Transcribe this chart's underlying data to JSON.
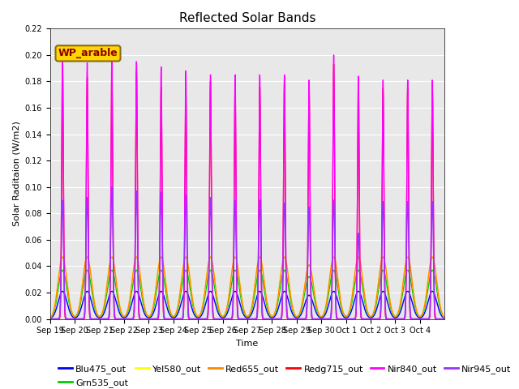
{
  "title": "Reflected Solar Bands",
  "ylabel": "Solar Raditaion (W/m2)",
  "xlabel": "Time",
  "annotation_text": "WP_arable",
  "annotation_color": "#8B0000",
  "annotation_bg": "#FFD700",
  "annotation_edge": "#8B6914",
  "ylim": [
    0.0,
    0.22
  ],
  "background_color": "#E8E8E8",
  "x_tick_labels": [
    "Sep 19",
    "Sep 20",
    "Sep 21",
    "Sep 22",
    "Sep 23",
    "Sep 24",
    "Sep 25",
    "Sep 26",
    "Sep 27",
    "Sep 28",
    "Sep 29",
    "Sep 30",
    "Oct 1",
    "Oct 2",
    "Oct 3",
    "Oct 4"
  ],
  "num_days": 16,
  "nir840_peaks": [
    0.197,
    0.194,
    0.195,
    0.195,
    0.191,
    0.188,
    0.185,
    0.185,
    0.185,
    0.185,
    0.181,
    0.2,
    0.184,
    0.181,
    0.181,
    0.181
  ],
  "redg715_peaks": [
    0.19,
    0.183,
    0.187,
    0.188,
    0.176,
    0.172,
    0.18,
    0.175,
    0.176,
    0.178,
    0.175,
    0.193,
    0.178,
    0.175,
    0.175,
    0.175
  ],
  "nir945_peaks": [
    0.09,
    0.092,
    0.1,
    0.097,
    0.096,
    0.094,
    0.092,
    0.09,
    0.09,
    0.088,
    0.085,
    0.09,
    0.065,
    0.089,
    0.089,
    0.089
  ],
  "blu_peaks": [
    0.021,
    0.021,
    0.021,
    0.021,
    0.021,
    0.021,
    0.021,
    0.021,
    0.021,
    0.021,
    0.018,
    0.021,
    0.021,
    0.021,
    0.021,
    0.021
  ],
  "grn_peaks": [
    0.037,
    0.037,
    0.037,
    0.037,
    0.037,
    0.037,
    0.037,
    0.037,
    0.037,
    0.037,
    0.032,
    0.037,
    0.037,
    0.037,
    0.037,
    0.037
  ],
  "yel_peaks": [
    0.047,
    0.047,
    0.047,
    0.047,
    0.047,
    0.047,
    0.047,
    0.047,
    0.047,
    0.047,
    0.041,
    0.047,
    0.047,
    0.047,
    0.047,
    0.047
  ],
  "red655_peaks": [
    0.047,
    0.047,
    0.047,
    0.047,
    0.047,
    0.047,
    0.047,
    0.047,
    0.047,
    0.047,
    0.041,
    0.047,
    0.047,
    0.047,
    0.047,
    0.047
  ],
  "series_colors": {
    "Blu475_out": "#0000FF",
    "Grn535_out": "#00CC00",
    "Yel580_out": "#FFFF00",
    "Red655_out": "#FF8800",
    "Redg715_out": "#FF0000",
    "Nir840_out": "#FF00FF",
    "Nir945_out": "#9933FF"
  },
  "yticks": [
    0.0,
    0.02,
    0.04,
    0.06,
    0.08,
    0.1,
    0.12,
    0.14,
    0.16,
    0.18,
    0.2,
    0.22
  ]
}
